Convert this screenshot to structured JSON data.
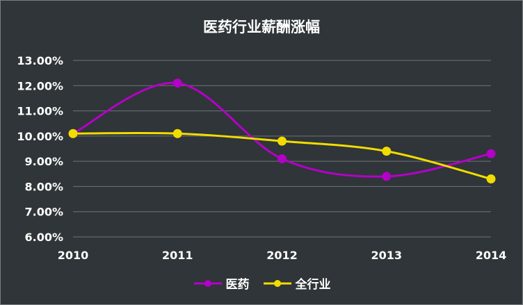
{
  "chart_data": {
    "type": "line",
    "title": "医药行业薪酬涨幅",
    "categories": [
      "2010",
      "2011",
      "2012",
      "2013",
      "2014"
    ],
    "series": [
      {
        "name": "医药",
        "color": "#b400c8",
        "values": [
          10.1,
          12.1,
          9.1,
          8.4,
          9.3
        ]
      },
      {
        "name": "全行业",
        "color": "#f2dc00",
        "values": [
          10.1,
          10.1,
          9.8,
          9.4,
          8.3
        ]
      }
    ],
    "ylim": [
      6,
      13
    ],
    "yticks": [
      "6.00%",
      "7.00%",
      "8.00%",
      "9.00%",
      "10.00%",
      "11.00%",
      "12.00%",
      "13.00%"
    ],
    "grid": true,
    "smooth": true,
    "legend_position": "bottom"
  }
}
